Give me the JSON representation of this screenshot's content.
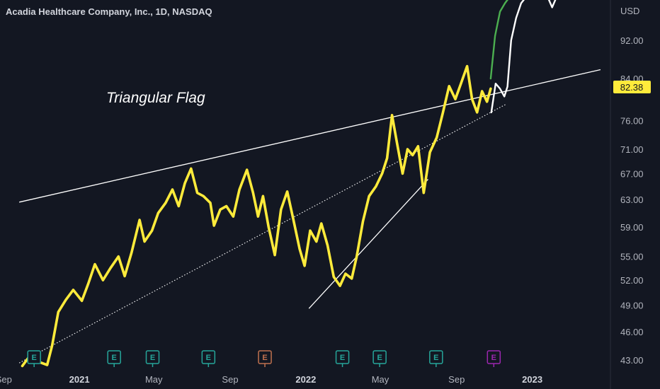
{
  "header": {
    "symbol_title": "Acadia Healthcare Company, Inc., 1D, NASDAQ",
    "currency": "USD"
  },
  "annotation": "Triangular Flag",
  "last_price": {
    "value": 82.38,
    "label": "82.38",
    "color": "#ffeb3b"
  },
  "colors": {
    "background": "#131722",
    "history_line": "#ffeb3b",
    "projection_line": "#ffffff",
    "projection_alt_line": "#4caf50",
    "trendline": "#ffffff",
    "earnings_reported": "#26a69a",
    "earnings_negative": "#c0714f",
    "earnings_upcoming": "#9c27b0"
  },
  "chart_data": {
    "type": "line",
    "log_scale": true,
    "grid": false,
    "legend": "none",
    "x_axis": {
      "ticks": [
        {
          "label": "Sep",
          "date": "2020-09-01",
          "bold": false
        },
        {
          "label": "2021",
          "date": "2021-01-01",
          "bold": true
        },
        {
          "label": "May",
          "date": "2021-05-01",
          "bold": false
        },
        {
          "label": "Sep",
          "date": "2021-09-01",
          "bold": false
        },
        {
          "label": "2022",
          "date": "2022-01-01",
          "bold": true
        },
        {
          "label": "May",
          "date": "2022-05-01",
          "bold": false
        },
        {
          "label": "Sep",
          "date": "2022-09-01",
          "bold": false
        },
        {
          "label": "2023",
          "date": "2023-01-01",
          "bold": true
        }
      ],
      "range": [
        "2020-08-26",
        "2023-05-07"
      ]
    },
    "y_axis": {
      "ticks": [
        "92.00",
        "84.00",
        "76.00",
        "71.00",
        "67.00",
        "63.00",
        "59.00",
        "55.00",
        "52.00",
        "49.00",
        "46.00",
        "43.00"
      ],
      "range": [
        42.0,
        104.0
      ]
    },
    "series": [
      {
        "role": "price",
        "color": "#ffeb3b",
        "points": [
          [
            "2020-10-01",
            42.4
          ],
          [
            "2020-10-15",
            43.6
          ],
          [
            "2020-10-28",
            42.8
          ],
          [
            "2020-11-10",
            42.5
          ],
          [
            "2020-11-18",
            44.5
          ],
          [
            "2020-11-28",
            48.2
          ],
          [
            "2020-12-10",
            49.6
          ],
          [
            "2020-12-22",
            50.8
          ],
          [
            "2021-01-05",
            49.5
          ],
          [
            "2021-01-15",
            51.5
          ],
          [
            "2021-01-26",
            54.0
          ],
          [
            "2021-02-08",
            52.0
          ],
          [
            "2021-02-20",
            53.5
          ],
          [
            "2021-03-05",
            55.0
          ],
          [
            "2021-03-15",
            52.5
          ],
          [
            "2021-03-26",
            55.5
          ],
          [
            "2021-04-08",
            60.0
          ],
          [
            "2021-04-16",
            57.0
          ],
          [
            "2021-04-28",
            58.5
          ],
          [
            "2021-05-08",
            61.0
          ],
          [
            "2021-05-20",
            62.5
          ],
          [
            "2021-05-31",
            64.5
          ],
          [
            "2021-06-10",
            62.0
          ],
          [
            "2021-06-20",
            65.5
          ],
          [
            "2021-06-30",
            67.8
          ],
          [
            "2021-07-10",
            64.0
          ],
          [
            "2021-07-20",
            63.5
          ],
          [
            "2021-07-31",
            62.5
          ],
          [
            "2021-08-06",
            59.2
          ],
          [
            "2021-08-16",
            61.5
          ],
          [
            "2021-08-26",
            62.0
          ],
          [
            "2021-09-06",
            60.5
          ],
          [
            "2021-09-16",
            64.5
          ],
          [
            "2021-09-28",
            67.6
          ],
          [
            "2021-10-08",
            64.0
          ],
          [
            "2021-10-16",
            60.5
          ],
          [
            "2021-10-24",
            63.5
          ],
          [
            "2021-11-02",
            59.0
          ],
          [
            "2021-11-12",
            55.2
          ],
          [
            "2021-11-22",
            61.5
          ],
          [
            "2021-12-02",
            64.2
          ],
          [
            "2021-12-12",
            60.0
          ],
          [
            "2021-12-22",
            56.0
          ],
          [
            "2021-12-30",
            53.8
          ],
          [
            "2022-01-08",
            58.5
          ],
          [
            "2022-01-18",
            57.0
          ],
          [
            "2022-01-26",
            59.5
          ],
          [
            "2022-02-05",
            56.5
          ],
          [
            "2022-02-15",
            52.4
          ],
          [
            "2022-02-25",
            51.3
          ],
          [
            "2022-03-06",
            52.8
          ],
          [
            "2022-03-16",
            52.2
          ],
          [
            "2022-03-24",
            55.0
          ],
          [
            "2022-04-03",
            59.8
          ],
          [
            "2022-04-13",
            63.5
          ],
          [
            "2022-04-24",
            65.0
          ],
          [
            "2022-05-04",
            67.0
          ],
          [
            "2022-05-12",
            69.5
          ],
          [
            "2022-05-20",
            77.0
          ],
          [
            "2022-05-28",
            72.0
          ],
          [
            "2022-06-06",
            67.0
          ],
          [
            "2022-06-14",
            71.0
          ],
          [
            "2022-06-22",
            70.0
          ],
          [
            "2022-07-01",
            71.5
          ],
          [
            "2022-07-10",
            64.0
          ],
          [
            "2022-07-20",
            70.5
          ],
          [
            "2022-07-31",
            73.0
          ],
          [
            "2022-08-10",
            77.5
          ],
          [
            "2022-08-20",
            82.5
          ],
          [
            "2022-08-30",
            80.0
          ],
          [
            "2022-09-08",
            83.0
          ],
          [
            "2022-09-18",
            86.5
          ],
          [
            "2022-09-26",
            80.0
          ],
          [
            "2022-10-04",
            77.5
          ],
          [
            "2022-10-12",
            81.5
          ],
          [
            "2022-10-20",
            79.5
          ],
          [
            "2022-10-26",
            82.0
          ]
        ]
      },
      {
        "role": "projection",
        "color": "#ffffff",
        "points": [
          [
            "2022-10-27",
            77.5
          ],
          [
            "2022-11-03",
            83.0
          ],
          [
            "2022-11-10",
            82.0
          ],
          [
            "2022-11-17",
            80.5
          ],
          [
            "2022-11-22",
            82.4
          ],
          [
            "2022-11-28",
            92.0
          ],
          [
            "2022-12-06",
            97.0
          ],
          [
            "2022-12-14",
            100.5
          ],
          [
            "2022-12-22",
            102.0
          ],
          [
            "2023-01-02",
            103.5
          ],
          [
            "2023-01-12",
            101.5
          ],
          [
            "2023-01-20",
            104.0
          ],
          [
            "2023-02-02",
            99.5
          ],
          [
            "2023-02-12",
            103.0
          ],
          [
            "2023-02-20",
            104.0
          ]
        ]
      },
      {
        "role": "projection_alt",
        "color": "#4caf50",
        "points": [
          [
            "2022-10-26",
            84.0
          ],
          [
            "2022-11-02",
            93.0
          ],
          [
            "2022-11-10",
            98.5
          ],
          [
            "2022-11-18",
            100.5
          ],
          [
            "2022-11-28",
            102.5
          ],
          [
            "2022-12-08",
            104.0
          ]
        ]
      }
    ],
    "trendlines": [
      {
        "style": "solid",
        "from": [
          "2020-09-26",
          62.6
        ],
        "to": [
          "2023-04-21",
          85.8
        ]
      },
      {
        "style": "dotted",
        "from": [
          "2020-09-26",
          42.7
        ],
        "to": [
          "2022-11-21",
          79.1
        ]
      },
      {
        "style": "solid",
        "from": [
          "2022-01-06",
          48.6
        ],
        "to": [
          "2022-07-17",
          66.1
        ]
      }
    ],
    "earnings_markers": [
      {
        "date": "2020-10-20",
        "label": "E",
        "kind": "reported"
      },
      {
        "date": "2021-02-26",
        "label": "E",
        "kind": "reported"
      },
      {
        "date": "2021-04-29",
        "label": "E",
        "kind": "reported"
      },
      {
        "date": "2021-07-28",
        "label": "E",
        "kind": "reported"
      },
      {
        "date": "2021-10-27",
        "label": "E",
        "kind": "negative"
      },
      {
        "date": "2022-03-01",
        "label": "E",
        "kind": "reported"
      },
      {
        "date": "2022-04-30",
        "label": "E",
        "kind": "reported"
      },
      {
        "date": "2022-07-30",
        "label": "E",
        "kind": "reported"
      },
      {
        "date": "2022-10-31",
        "label": "E",
        "kind": "upcoming"
      }
    ]
  }
}
